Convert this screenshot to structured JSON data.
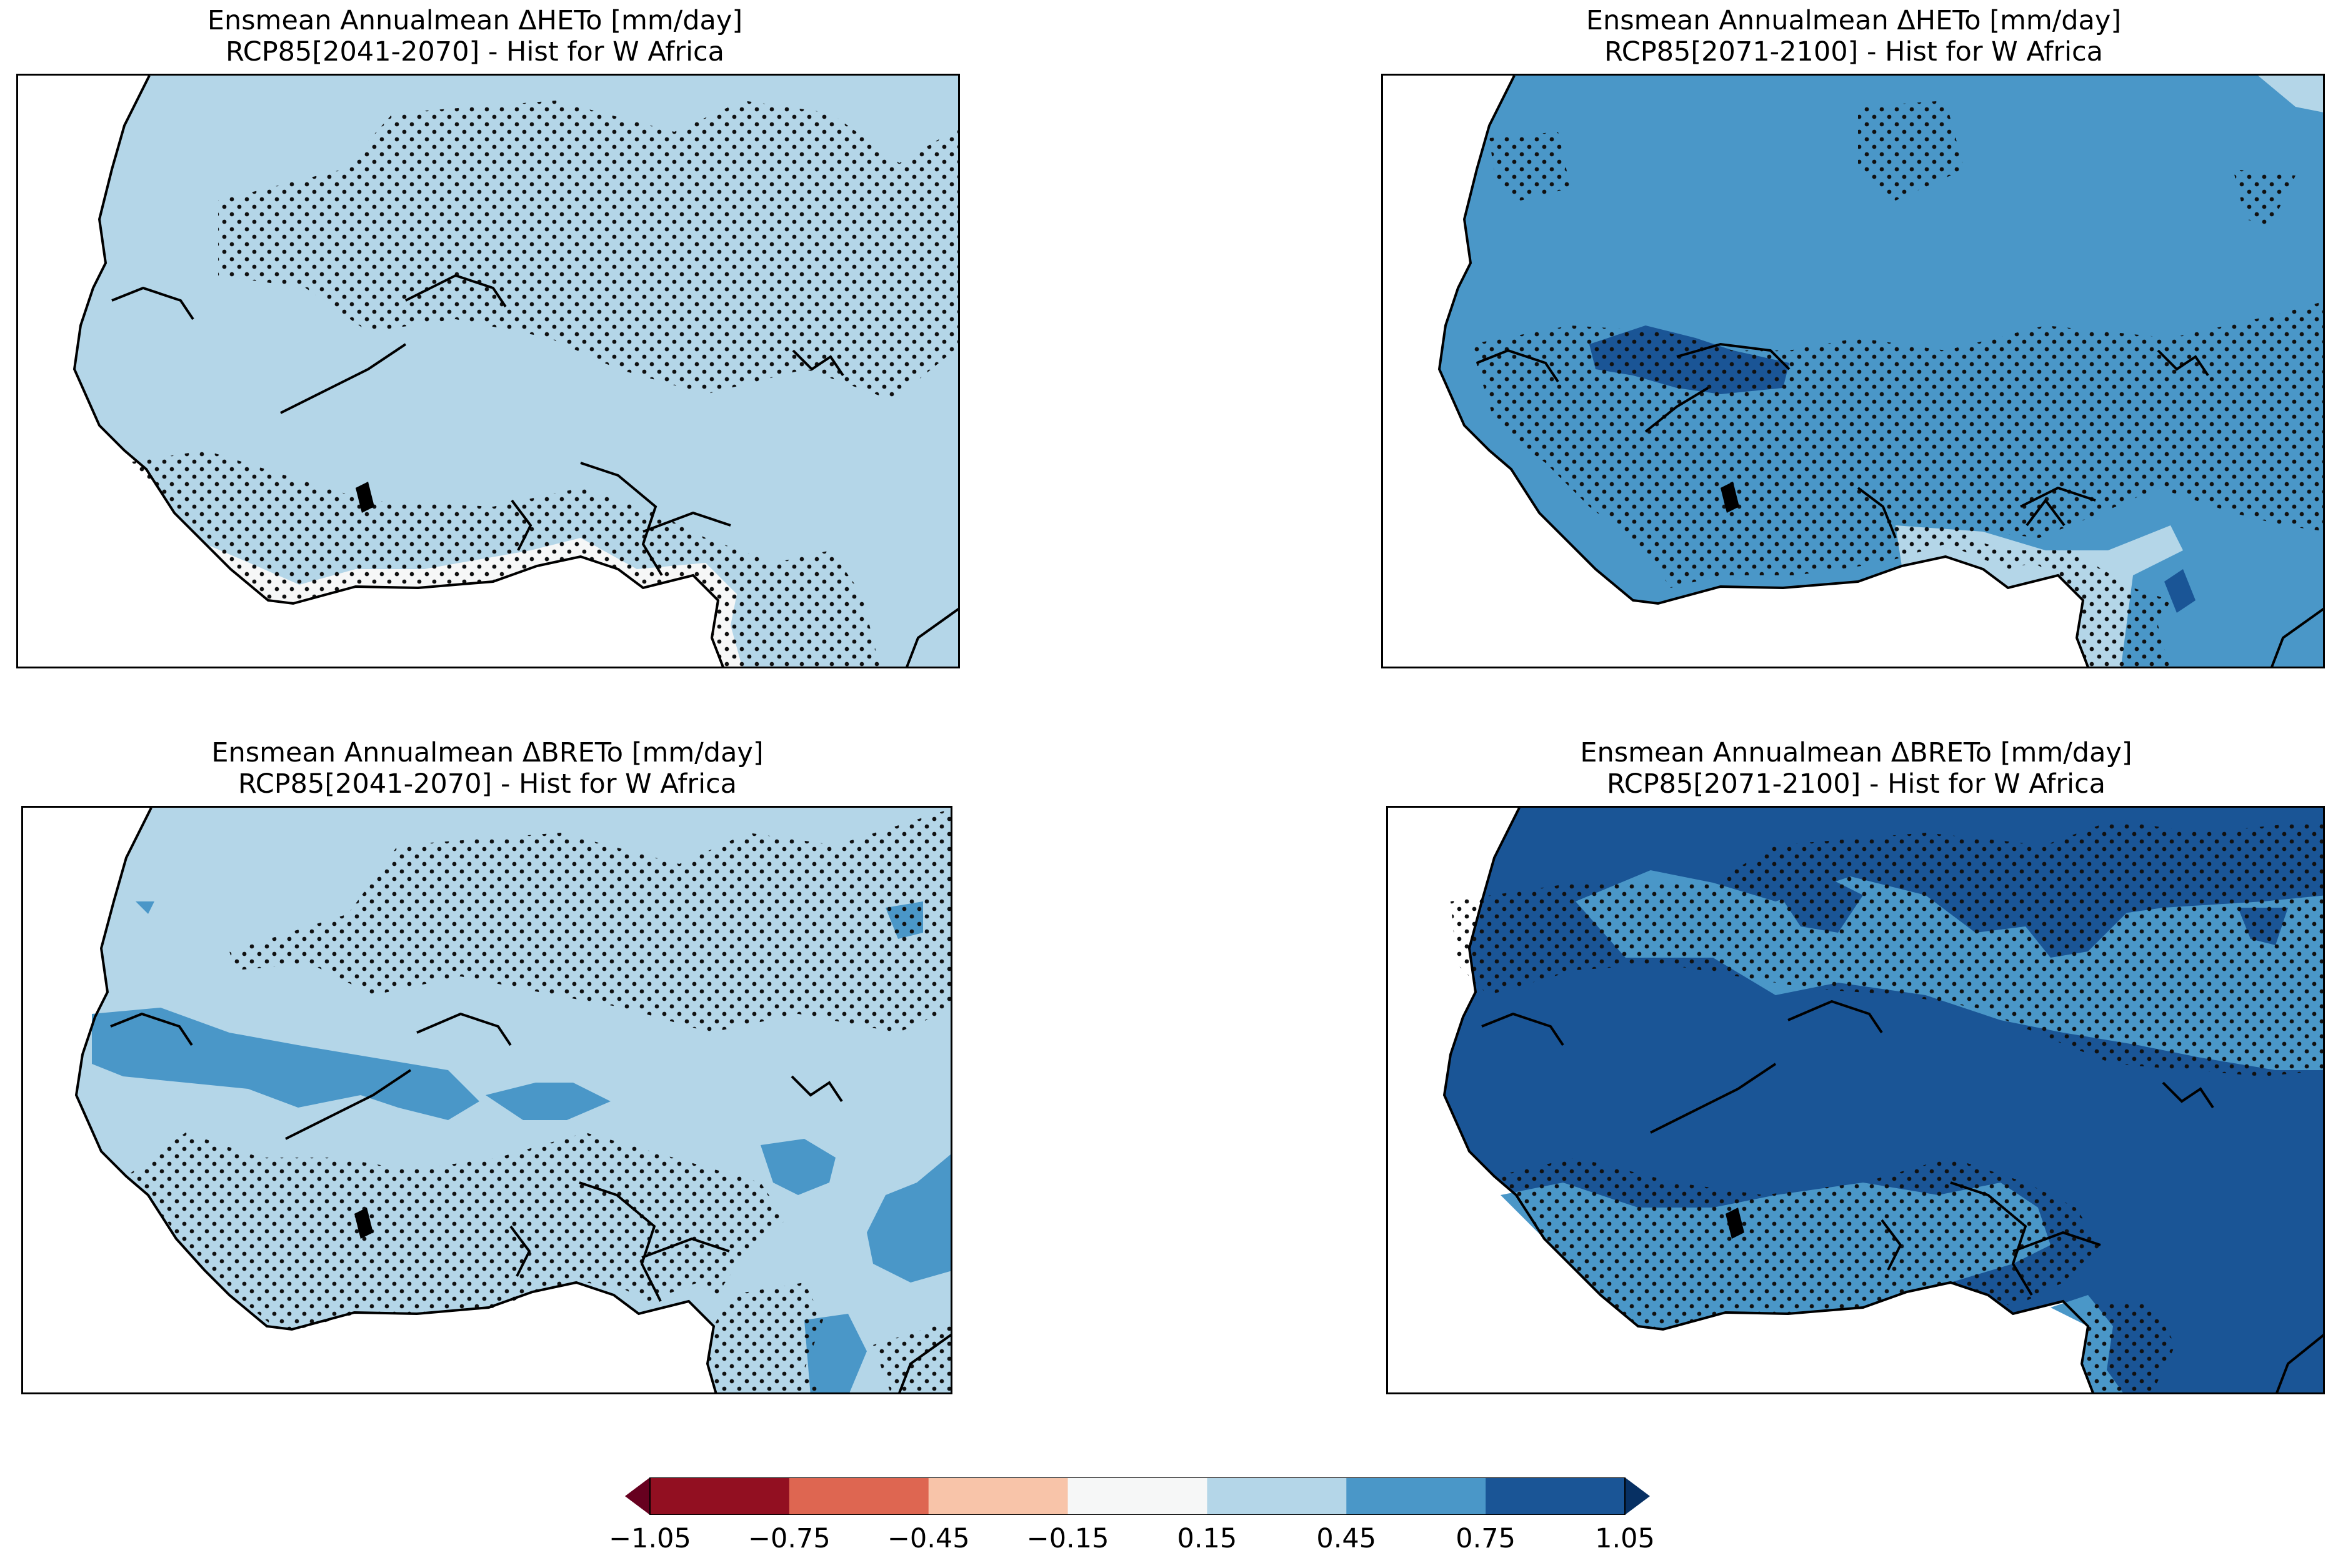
{
  "panels": [
    {
      "title1": "Ensmean  Annualmean ΔHETo [mm/day]",
      "title2": "RCP85[2041-2070] - Hist for W Africa",
      "base": "#b4d6e8",
      "hatch": "hatch-a"
    },
    {
      "title1": "Ensmean  Annualmean ΔHETo [mm/day]",
      "title2": "RCP85[2071-2100] - Hist for W Africa",
      "base": "#4a97c8",
      "hatch": "hatch-b"
    },
    {
      "title1": "Ensmean  Annualmean ΔBRETo [mm/day]",
      "title2": "RCP85[2041-2070] - Hist for W Africa",
      "base": "#b4d6e8",
      "hatch": "hatch-c"
    },
    {
      "title1": "Ensmean  Annualmean ΔBRETo [mm/day]",
      "title2": "RCP85[2071-2100] - Hist for W Africa",
      "base": "#1a5596",
      "hatch": "hatch-d"
    }
  ],
  "colorbar": {
    "ticks": [
      "−1.05",
      "−0.75",
      "−0.45",
      "−0.15",
      "0.15",
      "0.45",
      "0.75",
      "1.05"
    ],
    "colors": [
      "#920f21",
      "#de6651",
      "#f8c4a9",
      "#f6f7f7",
      "#b4d6e8",
      "#4a97c8",
      "#1a5596"
    ],
    "under_color": "#67001f",
    "over_color": "#073063"
  }
}
